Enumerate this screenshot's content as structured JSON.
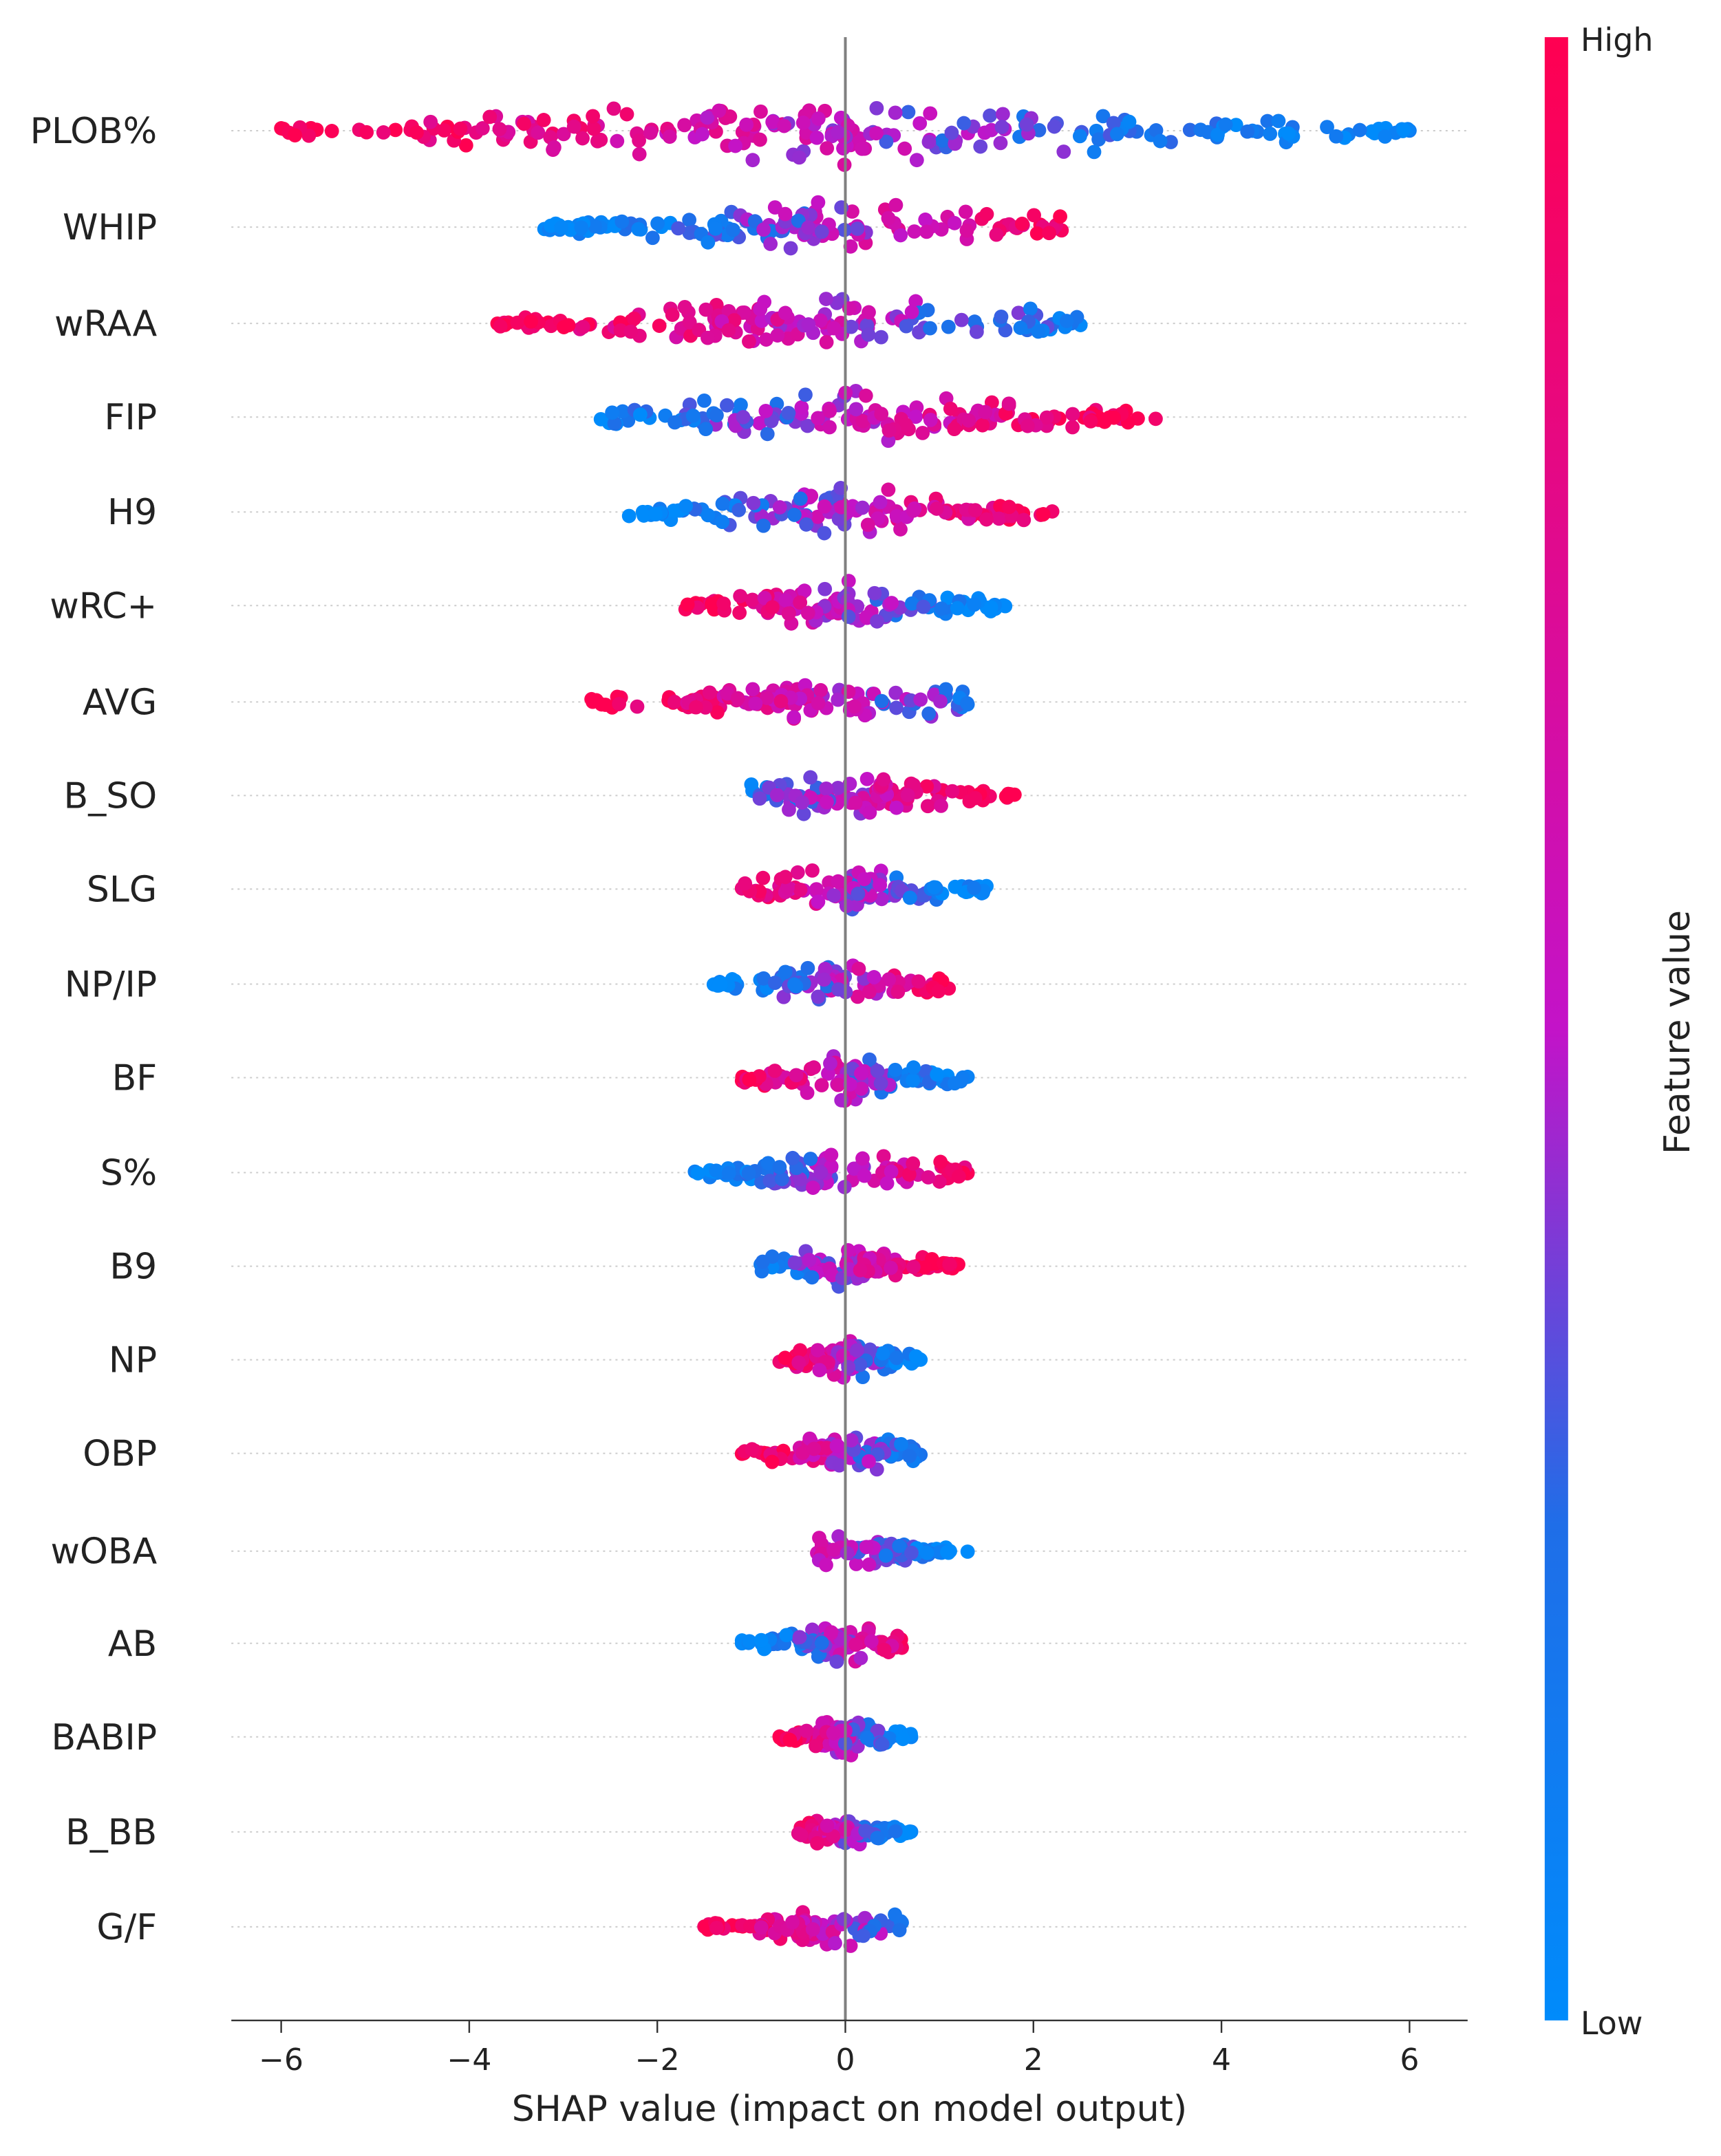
{
  "chart_data": {
    "type": "scatter",
    "subtype": "shap-beeswarm",
    "title": "",
    "xlabel": "SHAP value (impact on model output)",
    "ylabel": "",
    "xlim": [
      -6.5,
      6.6
    ],
    "xticks": [
      -6,
      -4,
      -2,
      0,
      2,
      4,
      6
    ],
    "xtick_labels": [
      "−6",
      "−4",
      "−2",
      "0",
      "2",
      "4",
      "6"
    ],
    "zero_line": 0,
    "colorbar": {
      "label": "Feature value",
      "high_label": "High",
      "low_label": "Low",
      "high_color": "#ff0051",
      "mid_color": "#c313c8",
      "low_color": "#008bfb"
    },
    "features": [
      {
        "name": "PLOB%",
        "min": -6.0,
        "max": 6.0,
        "width": 0.95,
        "trend": -1,
        "ypos": 95
      },
      {
        "name": "WHIP",
        "min": -3.2,
        "max": 2.3,
        "width": 0.75,
        "trend": 1,
        "ypos": 165
      },
      {
        "name": "wRAA",
        "min": -3.7,
        "max": 2.5,
        "width": 0.75,
        "trend": -1,
        "ypos": 235
      },
      {
        "name": "FIP",
        "min": -2.6,
        "max": 3.3,
        "width": 0.75,
        "trend": 1,
        "ypos": 303
      },
      {
        "name": "H9",
        "min": -2.3,
        "max": 2.2,
        "width": 0.75,
        "trend": 1,
        "ypos": 372
      },
      {
        "name": "wRC+",
        "min": -1.7,
        "max": 1.7,
        "width": 0.7,
        "trend": -1,
        "ypos": 440
      },
      {
        "name": "AVG",
        "min": -2.7,
        "max": 1.3,
        "width": 0.7,
        "trend": -1,
        "ypos": 510
      },
      {
        "name": "B_SO",
        "min": -1.0,
        "max": 1.8,
        "width": 0.65,
        "trend": 1,
        "ypos": 578
      },
      {
        "name": "SLG",
        "min": -1.1,
        "max": 1.5,
        "width": 0.65,
        "trend": -1,
        "ypos": 646
      },
      {
        "name": "NP/IP",
        "min": -1.4,
        "max": 1.1,
        "width": 0.65,
        "trend": 1,
        "ypos": 715
      },
      {
        "name": "BF",
        "min": -1.1,
        "max": 1.3,
        "width": 0.65,
        "trend": -1,
        "ypos": 783
      },
      {
        "name": "S%",
        "min": -1.6,
        "max": 1.3,
        "width": 0.65,
        "trend": 1,
        "ypos": 852
      },
      {
        "name": "B9",
        "min": -0.9,
        "max": 1.2,
        "width": 0.6,
        "trend": 1,
        "ypos": 920
      },
      {
        "name": "NP",
        "min": -0.7,
        "max": 0.8,
        "width": 0.6,
        "trend": -1,
        "ypos": 988
      },
      {
        "name": "OBP",
        "min": -1.1,
        "max": 0.8,
        "width": 0.6,
        "trend": -1,
        "ypos": 1056
      },
      {
        "name": "wOBA",
        "min": -0.3,
        "max": 1.3,
        "width": 0.45,
        "trend": -1,
        "ypos": 1127
      },
      {
        "name": "AB",
        "min": -1.1,
        "max": 0.6,
        "width": 0.55,
        "trend": 1,
        "ypos": 1194
      },
      {
        "name": "BABIP",
        "min": -0.7,
        "max": 0.7,
        "width": 0.55,
        "trend": -1,
        "ypos": 1262
      },
      {
        "name": "B_BB",
        "min": -0.5,
        "max": 0.7,
        "width": 0.5,
        "trend": -1,
        "ypos": 1331
      },
      {
        "name": "G/F",
        "min": -1.5,
        "max": 0.6,
        "width": 0.55,
        "trend": -1,
        "ypos": 1400
      }
    ]
  }
}
